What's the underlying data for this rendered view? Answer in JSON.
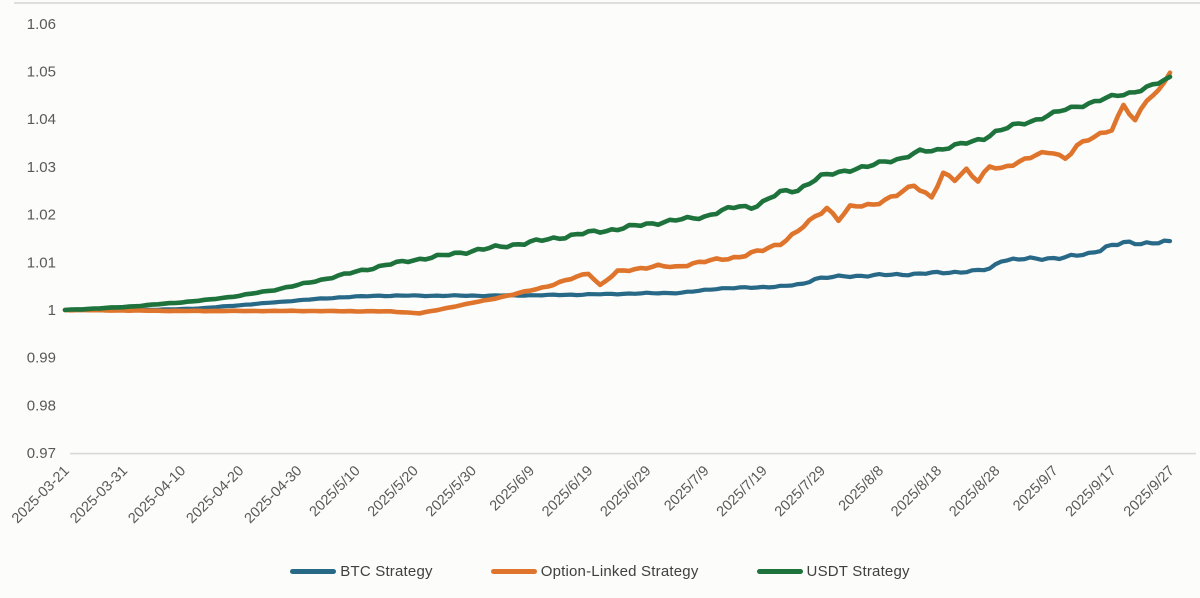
{
  "chart_data": {
    "type": "line",
    "title": "",
    "xlabel": "",
    "ylabel": "",
    "ylim": [
      0.97,
      1.06
    ],
    "grid": "none",
    "legend_position": "bottom",
    "background_color": "#fcfcfa",
    "axis_line_color": "#d9d9d9",
    "tick_label_color": "#595959",
    "ytick_labels": [
      "1.06",
      "1.05",
      "1.04",
      "1.03",
      "1.02",
      "1.01",
      "1",
      "0.99",
      "0.98",
      "0.97"
    ],
    "ytick_values": [
      1.06,
      1.05,
      1.04,
      1.03,
      1.02,
      1.01,
      1.0,
      0.99,
      0.98,
      0.97
    ],
    "xtick_labels": [
      "2025-03-21",
      "2025-03-31",
      "2025-04-10",
      "2025-04-20",
      "2025-04-30",
      "2025/5/10",
      "2025/5/20",
      "2025/5/30",
      "2025/6/9",
      "2025/6/19",
      "2025/6/29",
      "2025/7/9",
      "2025/7/19",
      "2025/7/29",
      "2025/8/8",
      "2025/8/18",
      "2025/8/28",
      "2025/9/7",
      "2025/9/17",
      "2025/9/27"
    ],
    "xtick_days_from_start": [
      0,
      10,
      20,
      30,
      40,
      50,
      60,
      70,
      80,
      90,
      100,
      110,
      120,
      130,
      140,
      150,
      160,
      170,
      180,
      190
    ],
    "x_range_days": [
      0,
      190
    ],
    "series": [
      {
        "name": "BTC Strategy",
        "color": "#286987",
        "points": [
          [
            0,
            1.0
          ],
          [
            10,
            1.0
          ],
          [
            18,
            1.0001
          ],
          [
            24,
            1.0004
          ],
          [
            30,
            1.001
          ],
          [
            36,
            1.0016
          ],
          [
            42,
            1.0022
          ],
          [
            48,
            1.0027
          ],
          [
            54,
            1.003
          ],
          [
            62,
            1.003
          ],
          [
            72,
            1.003
          ],
          [
            82,
            1.0031
          ],
          [
            92,
            1.0033
          ],
          [
            100,
            1.0035
          ],
          [
            106,
            1.0036
          ],
          [
            109,
            1.004
          ],
          [
            112,
            1.0045
          ],
          [
            118,
            1.0047
          ],
          [
            124,
            1.005
          ],
          [
            127,
            1.0055
          ],
          [
            129,
            1.0066
          ],
          [
            133,
            1.007
          ],
          [
            140,
            1.0073
          ],
          [
            147,
            1.0076
          ],
          [
            152,
            1.0079
          ],
          [
            156,
            1.0081
          ],
          [
            159,
            1.0086
          ],
          [
            161,
            1.0105
          ],
          [
            166,
            1.0107
          ],
          [
            172,
            1.011
          ],
          [
            176,
            1.0118
          ],
          [
            179,
            1.0132
          ],
          [
            182,
            1.014
          ],
          [
            186,
            1.0141
          ],
          [
            190,
            1.0142
          ]
        ]
      },
      {
        "name": "Option-Linked Strategy",
        "color": "#df752d",
        "points": [
          [
            0,
            1.0
          ],
          [
            20,
            0.9998
          ],
          [
            40,
            0.9998
          ],
          [
            56,
            0.9997
          ],
          [
            61,
            0.9993
          ],
          [
            64,
            1.0
          ],
          [
            68,
            1.001
          ],
          [
            73,
            1.0022
          ],
          [
            78,
            1.0035
          ],
          [
            83,
            1.005
          ],
          [
            87,
            1.0065
          ],
          [
            90,
            1.0078
          ],
          [
            92,
            1.0052
          ],
          [
            95,
            1.008
          ],
          [
            99,
            1.0088
          ],
          [
            102,
            1.0092
          ],
          [
            105,
            1.009
          ],
          [
            108,
            1.0098
          ],
          [
            112,
            1.0105
          ],
          [
            116,
            1.0112
          ],
          [
            120,
            1.0125
          ],
          [
            123,
            1.014
          ],
          [
            126,
            1.0165
          ],
          [
            129,
            1.0195
          ],
          [
            131,
            1.0215
          ],
          [
            133,
            1.019
          ],
          [
            135,
            1.0215
          ],
          [
            139,
            1.0222
          ],
          [
            143,
            1.024
          ],
          [
            146,
            1.0262
          ],
          [
            149,
            1.0237
          ],
          [
            151,
            1.0285
          ],
          [
            153,
            1.0272
          ],
          [
            155,
            1.0295
          ],
          [
            157,
            1.0272
          ],
          [
            159,
            1.03
          ],
          [
            161,
            1.0295
          ],
          [
            164,
            1.0312
          ],
          [
            167,
            1.0325
          ],
          [
            170,
            1.033
          ],
          [
            172,
            1.0318
          ],
          [
            174,
            1.0345
          ],
          [
            177,
            1.0362
          ],
          [
            180,
            1.038
          ],
          [
            182,
            1.043
          ],
          [
            184,
            1.0395
          ],
          [
            186,
            1.044
          ],
          [
            188,
            1.046
          ],
          [
            190,
            1.05
          ]
        ]
      },
      {
        "name": "USDT Strategy",
        "color": "#1e733c",
        "points": [
          [
            0,
            1.0
          ],
          [
            5,
            1.0003
          ],
          [
            10,
            1.0006
          ],
          [
            15,
            1.0011
          ],
          [
            20,
            1.0016
          ],
          [
            25,
            1.0022
          ],
          [
            30,
            1.003
          ],
          [
            35,
            1.004
          ],
          [
            40,
            1.0052
          ],
          [
            45,
            1.0066
          ],
          [
            50,
            1.008
          ],
          [
            55,
            1.0094
          ],
          [
            60,
            1.0105
          ],
          [
            65,
            1.0114
          ],
          [
            70,
            1.0124
          ],
          [
            75,
            1.0133
          ],
          [
            80,
            1.0142
          ],
          [
            85,
            1.0152
          ],
          [
            90,
            1.0162
          ],
          [
            95,
            1.017
          ],
          [
            100,
            1.018
          ],
          [
            105,
            1.0188
          ],
          [
            110,
            1.0196
          ],
          [
            113,
            1.0208
          ],
          [
            116,
            1.0218
          ],
          [
            118,
            1.0215
          ],
          [
            121,
            1.0232
          ],
          [
            123,
            1.0247
          ],
          [
            126,
            1.0252
          ],
          [
            130,
            1.028
          ],
          [
            134,
            1.0292
          ],
          [
            138,
            1.03
          ],
          [
            141,
            1.0312
          ],
          [
            144,
            1.0318
          ],
          [
            147,
            1.0332
          ],
          [
            150,
            1.0336
          ],
          [
            153,
            1.0345
          ],
          [
            156,
            1.0352
          ],
          [
            158,
            1.036
          ],
          [
            160,
            1.0374
          ],
          [
            163,
            1.0386
          ],
          [
            166,
            1.0395
          ],
          [
            169,
            1.0408
          ],
          [
            172,
            1.042
          ],
          [
            175,
            1.043
          ],
          [
            178,
            1.044
          ],
          [
            181,
            1.045
          ],
          [
            184,
            1.0458
          ],
          [
            187,
            1.047
          ],
          [
            190,
            1.0487
          ]
        ]
      }
    ]
  }
}
